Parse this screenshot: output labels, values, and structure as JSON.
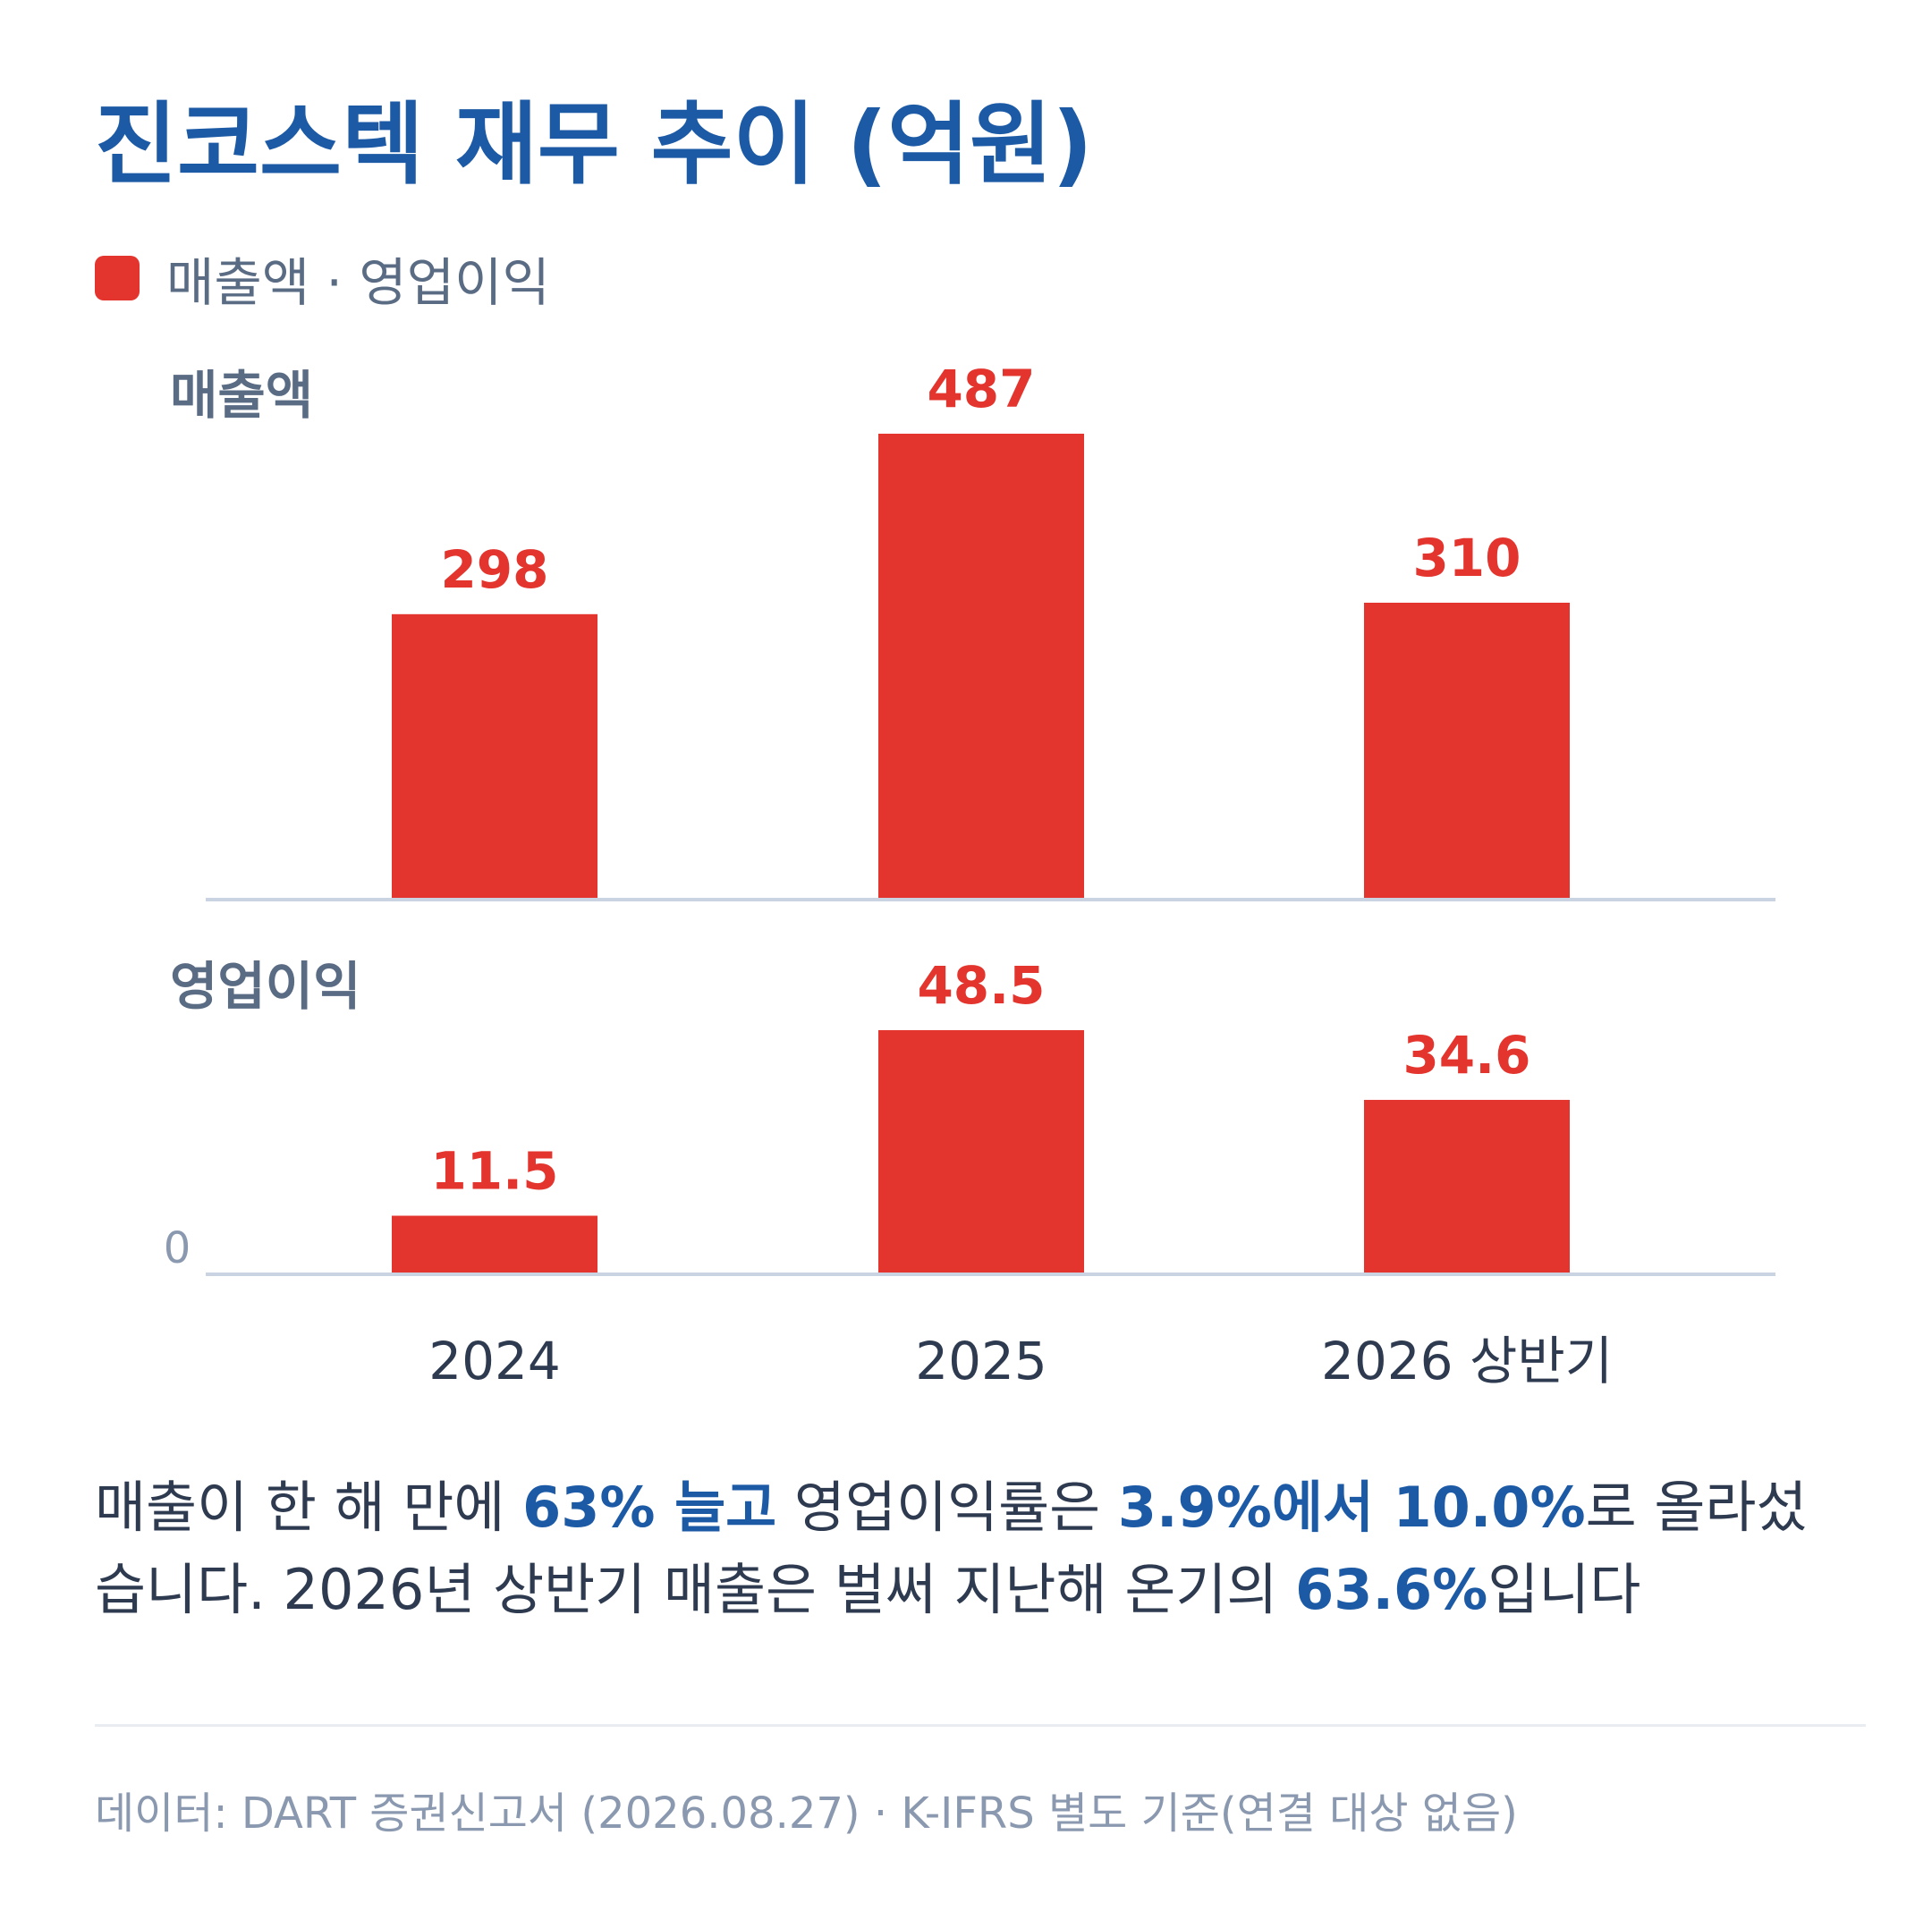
{
  "title": "진코스텍 재무 추이 (억원)",
  "legend": {
    "label": "매출액 · 영업이익",
    "color": "#e3342d"
  },
  "colors": {
    "bar": "#e3342d",
    "title": "#1c5aa6",
    "axis": "#c9d3e1",
    "panel_label": "#5a6b84",
    "tick": "#2d3a4f",
    "zero_label": "#8a99af"
  },
  "chart_data": {
    "type": "bar",
    "categories": [
      "2024",
      "2025",
      "2026 상반기"
    ],
    "panels": [
      {
        "label": "매출액",
        "values": [
          298,
          487,
          310
        ],
        "value_labels": [
          "298",
          "487",
          "310"
        ]
      },
      {
        "label": "영업이익",
        "values": [
          11.5,
          48.5,
          34.6
        ],
        "value_labels": [
          "11.5",
          "48.5",
          "34.6"
        ],
        "zero_label": "0"
      }
    ],
    "grid": false
  },
  "summary": {
    "line1": [
      {
        "text": "매출이 한 해 만에 ",
        "bold": false
      },
      {
        "text": "63% 늘고",
        "bold": true
      },
      {
        "text": " 영업이익률은 ",
        "bold": false
      },
      {
        "text": "3.9%에서 10.0%",
        "bold": true
      },
      {
        "text": "로 올라섰",
        "bold": false
      }
    ],
    "line2": [
      {
        "text": "습니다. 2026년 상반기 매출은 벌써 지난해 온기의 ",
        "bold": false
      },
      {
        "text": "63.6%",
        "bold": true
      },
      {
        "text": "입니다",
        "bold": false
      }
    ]
  },
  "source": "데이터: DART 증권신고서 (2026.08.27) · K-IFRS 별도 기준(연결 대상 없음)"
}
